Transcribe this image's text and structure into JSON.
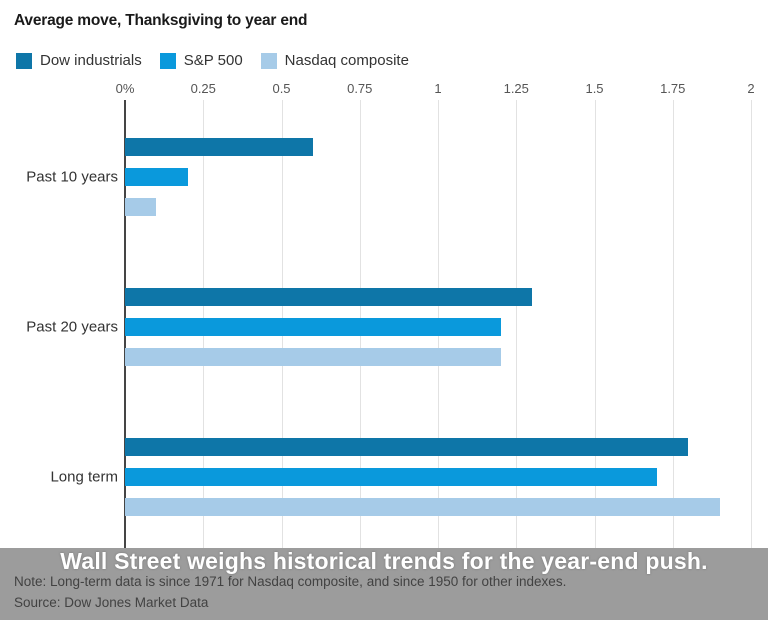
{
  "title": "Average move, Thanksgiving to year end",
  "legend": {
    "items": [
      {
        "label": "Dow industrials",
        "color": "#0e76a8"
      },
      {
        "label": "S&P 500",
        "color": "#0a99dc"
      },
      {
        "label": "Nasdaq composite",
        "color": "#a6cbe8"
      }
    ]
  },
  "chart_data": {
    "type": "bar",
    "orientation": "horizontal",
    "title": "Average move, Thanksgiving to year end",
    "categories": [
      "Past 10 years",
      "Past 20 years",
      "Long term"
    ],
    "series": [
      {
        "name": "Dow industrials",
        "color": "#0e76a8",
        "values": [
          0.6,
          1.3,
          1.8
        ]
      },
      {
        "name": "S&P 500",
        "color": "#0a99dc",
        "values": [
          0.2,
          1.2,
          1.7
        ]
      },
      {
        "name": "Nasdaq composite",
        "color": "#a6cbe8",
        "values": [
          0.1,
          1.2,
          1.9
        ]
      }
    ],
    "xlim": [
      0,
      2
    ],
    "x_ticks": [
      {
        "label": "0%",
        "value": 0
      },
      {
        "label": "0.25",
        "value": 0.25
      },
      {
        "label": "0.5",
        "value": 0.5
      },
      {
        "label": "0.75",
        "value": 0.75
      },
      {
        "label": "1",
        "value": 1
      },
      {
        "label": "1.25",
        "value": 1.25
      },
      {
        "label": "1.5",
        "value": 1.5
      },
      {
        "label": "1.75",
        "value": 1.75
      },
      {
        "label": "2",
        "value": 2
      }
    ],
    "grid": true,
    "legend_position": "top"
  },
  "caption": {
    "headline": "Wall Street weighs historical trends for the year-end push.",
    "note": "Note: Long-term data is since 1971 for Nasdaq composite, and since 1950 for other indexes.",
    "source": "Source: Dow Jones Market Data"
  }
}
